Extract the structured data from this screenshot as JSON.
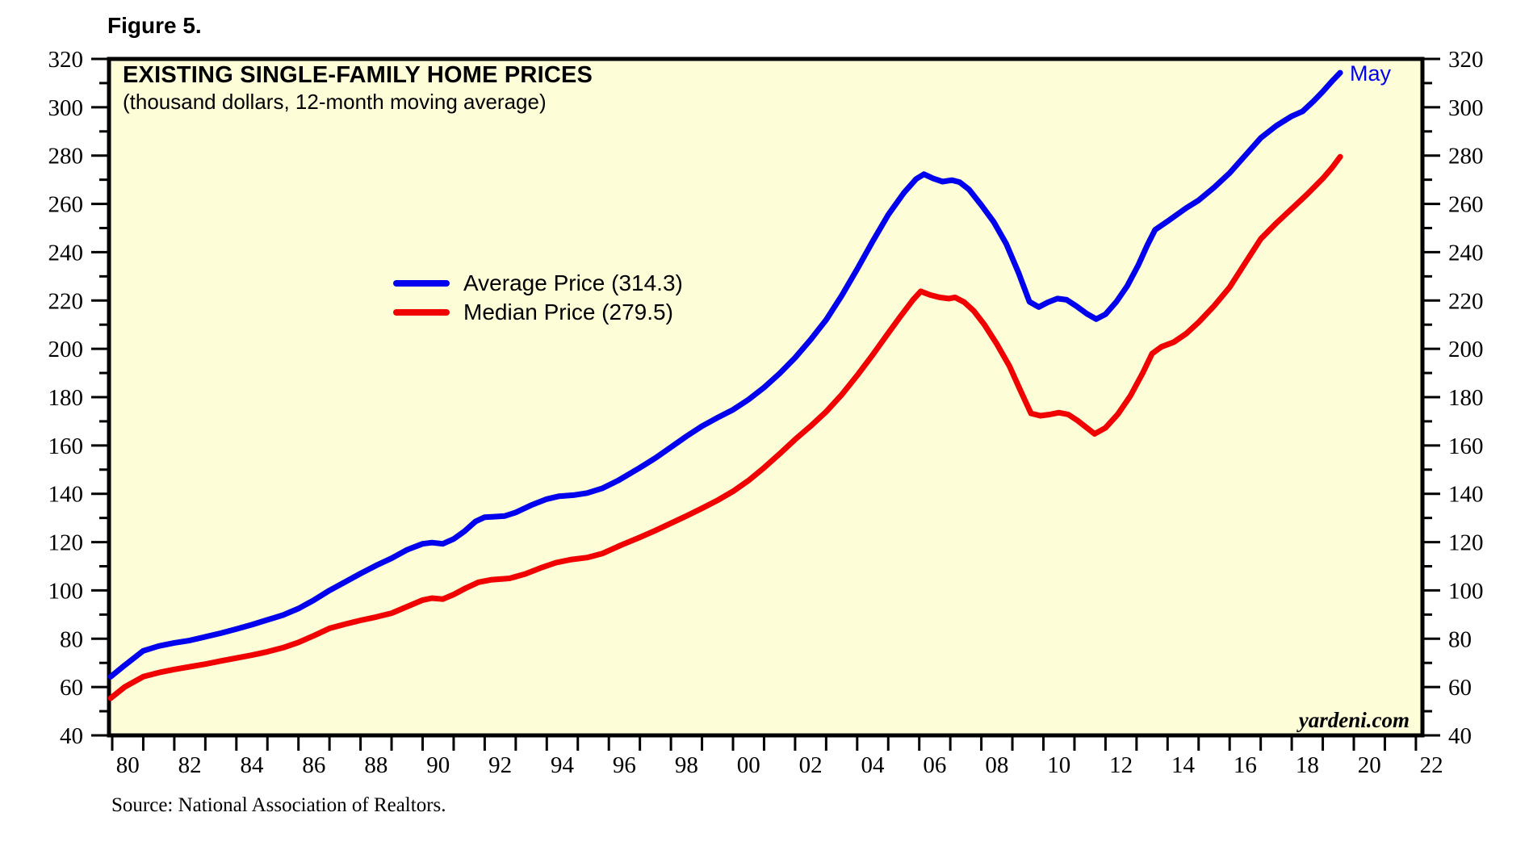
{
  "figure_label": "Figure 5.",
  "source_note": "Source: National Association of Realtors.",
  "annotations": {
    "last_point_label": "May",
    "watermark": "yardeni.com"
  },
  "colors": {
    "average_line": "#0000EE",
    "median_line": "#F10000",
    "plot_background": "#FDFDD8",
    "axis": "#000000",
    "page_background": "#FFFFFF"
  },
  "chart_data": {
    "type": "line",
    "title": "EXISTING SINGLE-FAMILY HOME PRICES",
    "subtitle": "(thousand dollars, 12-month moving average)",
    "xlabel": "",
    "ylabel": "",
    "ylim": [
      40,
      320
    ],
    "x_range_years": [
      1979.9,
      2022.3
    ],
    "grid": false,
    "legend_position": "upper-middle-left inside plot",
    "y_ticks": [
      {
        "value": 40,
        "label": "40"
      },
      {
        "value": 60,
        "label": "60"
      },
      {
        "value": 80,
        "label": "80"
      },
      {
        "value": 100,
        "label": "100"
      },
      {
        "value": 120,
        "label": "120"
      },
      {
        "value": 140,
        "label": "140"
      },
      {
        "value": 160,
        "label": "160"
      },
      {
        "value": 180,
        "label": "180"
      },
      {
        "value": 200,
        "label": "200"
      },
      {
        "value": 220,
        "label": "220"
      },
      {
        "value": 240,
        "label": "240"
      },
      {
        "value": 260,
        "label": "260"
      },
      {
        "value": 280,
        "label": "280"
      },
      {
        "value": 300,
        "label": "300"
      },
      {
        "value": 320,
        "label": "320"
      }
    ],
    "y_minor_tick_step": 10,
    "x_tick_years_step": 1,
    "x_tick_labels": [
      {
        "year": 1980,
        "label": "80"
      },
      {
        "year": 1982,
        "label": "82"
      },
      {
        "year": 1984,
        "label": "84"
      },
      {
        "year": 1986,
        "label": "86"
      },
      {
        "year": 1988,
        "label": "88"
      },
      {
        "year": 1990,
        "label": "90"
      },
      {
        "year": 1992,
        "label": "92"
      },
      {
        "year": 1994,
        "label": "94"
      },
      {
        "year": 1996,
        "label": "96"
      },
      {
        "year": 1998,
        "label": "98"
      },
      {
        "year": 2000,
        "label": "00"
      },
      {
        "year": 2002,
        "label": "02"
      },
      {
        "year": 2004,
        "label": "04"
      },
      {
        "year": 2006,
        "label": "06"
      },
      {
        "year": 2008,
        "label": "08"
      },
      {
        "year": 2010,
        "label": "10"
      },
      {
        "year": 2012,
        "label": "12"
      },
      {
        "year": 2014,
        "label": "14"
      },
      {
        "year": 2016,
        "label": "16"
      },
      {
        "year": 2018,
        "label": "18"
      },
      {
        "year": 2020,
        "label": "20"
      },
      {
        "year": 2022,
        "label": "22"
      }
    ],
    "legend": [
      {
        "label": "Average Price (314.3)",
        "color": "#0000EE"
      },
      {
        "label": "Median Price (279.5)",
        "color": "#F10000"
      }
    ],
    "series": [
      {
        "name": "Average Price",
        "last_value": 314.3,
        "last_point_label": "May",
        "color": "#0000EE",
        "points": [
          [
            1979.95,
            64.3
          ],
          [
            1980.4,
            69
          ],
          [
            1981,
            75
          ],
          [
            1981.5,
            77
          ],
          [
            1982,
            78.3
          ],
          [
            1982.5,
            79.3
          ],
          [
            1983,
            80.8
          ],
          [
            1983.5,
            82.3
          ],
          [
            1984,
            84
          ],
          [
            1984.5,
            85.8
          ],
          [
            1985,
            87.8
          ],
          [
            1985.5,
            89.8
          ],
          [
            1986,
            92.5
          ],
          [
            1986.5,
            96
          ],
          [
            1987,
            100
          ],
          [
            1987.5,
            103.5
          ],
          [
            1988,
            107
          ],
          [
            1988.5,
            110.3
          ],
          [
            1989,
            113.3
          ],
          [
            1989.5,
            116.8
          ],
          [
            1990,
            119.3
          ],
          [
            1990.3,
            119.8
          ],
          [
            1990.65,
            119.3
          ],
          [
            1991,
            121.3
          ],
          [
            1991.35,
            124.5
          ],
          [
            1991.7,
            128.5
          ],
          [
            1992,
            130.3
          ],
          [
            1992.3,
            130.5
          ],
          [
            1992.65,
            130.8
          ],
          [
            1993,
            132.3
          ],
          [
            1993.5,
            135.3
          ],
          [
            1994,
            137.8
          ],
          [
            1994.4,
            139
          ],
          [
            1994.9,
            139.5
          ],
          [
            1995.3,
            140.3
          ],
          [
            1995.8,
            142.3
          ],
          [
            1996.3,
            145.5
          ],
          [
            1997,
            150.8
          ],
          [
            1997.5,
            154.8
          ],
          [
            1998,
            159.3
          ],
          [
            1998.5,
            163.8
          ],
          [
            1999,
            168
          ],
          [
            1999.5,
            171.5
          ],
          [
            2000,
            174.8
          ],
          [
            2000.5,
            179
          ],
          [
            2001,
            184
          ],
          [
            2001.5,
            189.8
          ],
          [
            2002,
            196.3
          ],
          [
            2002.5,
            203.8
          ],
          [
            2003,
            212
          ],
          [
            2003.5,
            222
          ],
          [
            2004,
            233
          ],
          [
            2004.5,
            244.5
          ],
          [
            2005,
            255.5
          ],
          [
            2005.5,
            264.5
          ],
          [
            2005.9,
            270.3
          ],
          [
            2006.15,
            272.3
          ],
          [
            2006.45,
            270.5
          ],
          [
            2006.75,
            269.2
          ],
          [
            2007.05,
            269.8
          ],
          [
            2007.3,
            269
          ],
          [
            2007.6,
            266
          ],
          [
            2008,
            259.5
          ],
          [
            2008.4,
            252.5
          ],
          [
            2008.8,
            243.5
          ],
          [
            2009.2,
            231.5
          ],
          [
            2009.55,
            219.5
          ],
          [
            2009.85,
            217.3
          ],
          [
            2010.15,
            219.3
          ],
          [
            2010.45,
            220.8
          ],
          [
            2010.75,
            220.3
          ],
          [
            2011.05,
            217.8
          ],
          [
            2011.4,
            214.5
          ],
          [
            2011.7,
            212.3
          ],
          [
            2012,
            214.3
          ],
          [
            2012.35,
            219.5
          ],
          [
            2012.7,
            226
          ],
          [
            2013.05,
            234.5
          ],
          [
            2013.35,
            243
          ],
          [
            2013.6,
            249.3
          ],
          [
            2014,
            252.8
          ],
          [
            2014.6,
            258.3
          ],
          [
            2015,
            261.5
          ],
          [
            2015.5,
            266.8
          ],
          [
            2016,
            272.8
          ],
          [
            2016.5,
            280
          ],
          [
            2017,
            287.3
          ],
          [
            2017.5,
            292.3
          ],
          [
            2018,
            296.3
          ],
          [
            2018.35,
            298.3
          ],
          [
            2018.7,
            302.5
          ],
          [
            2019,
            306.5
          ],
          [
            2019.3,
            310.8
          ],
          [
            2019.56,
            314.3
          ]
        ]
      },
      {
        "name": "Median Price",
        "last_value": 279.5,
        "last_point_label": "May",
        "color": "#F10000",
        "points": [
          [
            1979.95,
            55.4
          ],
          [
            1980.4,
            60
          ],
          [
            1981,
            64.3
          ],
          [
            1981.5,
            66
          ],
          [
            1982,
            67.3
          ],
          [
            1982.5,
            68.4
          ],
          [
            1983,
            69.5
          ],
          [
            1983.5,
            70.8
          ],
          [
            1984,
            72
          ],
          [
            1984.5,
            73.2
          ],
          [
            1985,
            74.6
          ],
          [
            1985.5,
            76.3
          ],
          [
            1986,
            78.5
          ],
          [
            1986.5,
            81.3
          ],
          [
            1987,
            84.3
          ],
          [
            1987.5,
            86
          ],
          [
            1988,
            87.6
          ],
          [
            1988.5,
            89
          ],
          [
            1989,
            90.6
          ],
          [
            1989.5,
            93.3
          ],
          [
            1990,
            96
          ],
          [
            1990.3,
            96.8
          ],
          [
            1990.65,
            96.4
          ],
          [
            1991,
            98.3
          ],
          [
            1991.4,
            101
          ],
          [
            1991.8,
            103.4
          ],
          [
            1992.2,
            104.4
          ],
          [
            1992.8,
            105
          ],
          [
            1993.3,
            106.8
          ],
          [
            1993.8,
            109.3
          ],
          [
            1994.3,
            111.5
          ],
          [
            1994.8,
            112.8
          ],
          [
            1995.3,
            113.6
          ],
          [
            1995.8,
            115.3
          ],
          [
            1996.4,
            118.8
          ],
          [
            1997,
            122
          ],
          [
            1997.5,
            124.8
          ],
          [
            1998,
            127.8
          ],
          [
            1998.5,
            130.8
          ],
          [
            1999,
            134
          ],
          [
            1999.5,
            137.3
          ],
          [
            2000,
            141
          ],
          [
            2000.5,
            145.5
          ],
          [
            2001,
            150.8
          ],
          [
            2001.5,
            156.5
          ],
          [
            2002,
            162.5
          ],
          [
            2002.5,
            168
          ],
          [
            2003,
            174
          ],
          [
            2003.5,
            181
          ],
          [
            2004,
            189
          ],
          [
            2004.5,
            197.5
          ],
          [
            2005,
            206.5
          ],
          [
            2005.4,
            213.5
          ],
          [
            2005.8,
            220.3
          ],
          [
            2006.05,
            223.8
          ],
          [
            2006.35,
            222.3
          ],
          [
            2006.65,
            221.3
          ],
          [
            2006.95,
            220.8
          ],
          [
            2007.15,
            221.3
          ],
          [
            2007.45,
            219.3
          ],
          [
            2007.75,
            215.8
          ],
          [
            2008.1,
            210
          ],
          [
            2008.5,
            202
          ],
          [
            2008.9,
            193
          ],
          [
            2009.25,
            183
          ],
          [
            2009.6,
            173.3
          ],
          [
            2009.9,
            172.3
          ],
          [
            2010.2,
            172.8
          ],
          [
            2010.5,
            173.6
          ],
          [
            2010.8,
            172.8
          ],
          [
            2011.1,
            170.3
          ],
          [
            2011.4,
            167.3
          ],
          [
            2011.65,
            164.8
          ],
          [
            2012,
            167.3
          ],
          [
            2012.4,
            173
          ],
          [
            2012.8,
            180.5
          ],
          [
            2013.2,
            190
          ],
          [
            2013.5,
            198
          ],
          [
            2013.8,
            200.8
          ],
          [
            2014.2,
            202.8
          ],
          [
            2014.6,
            206.3
          ],
          [
            2015,
            211
          ],
          [
            2015.5,
            217.8
          ],
          [
            2016,
            225.5
          ],
          [
            2016.5,
            235.5
          ],
          [
            2017,
            245.5
          ],
          [
            2017.5,
            252
          ],
          [
            2018,
            258
          ],
          [
            2018.5,
            264
          ],
          [
            2019,
            270.5
          ],
          [
            2019.3,
            275
          ],
          [
            2019.56,
            279.5
          ]
        ]
      }
    ]
  }
}
